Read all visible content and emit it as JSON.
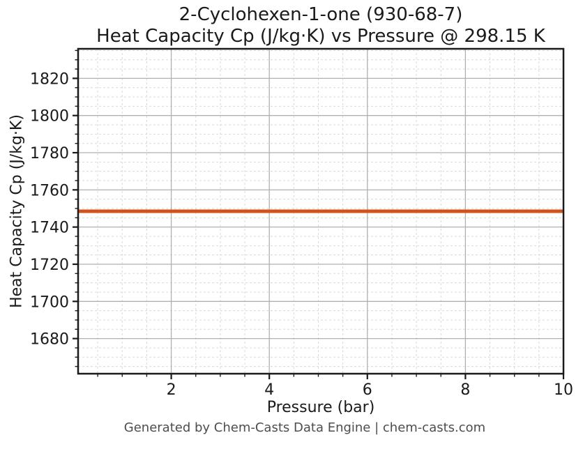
{
  "chart_data": {
    "type": "line",
    "title": "2-Cyclohexen-1-one (930-68-7)",
    "subtitle": "Heat Capacity Cp (J/kg·K) vs Pressure @ 298.15 K",
    "xlabel": "Pressure (bar)",
    "ylabel": "Heat Capacity Cp (J/kg·K)",
    "footer": "Generated by Chem-Casts Data Engine | chem-casts.com",
    "xlim": [
      0.1,
      10
    ],
    "ylim": [
      1661.1,
      1835.9
    ],
    "x_major_ticks": [
      2,
      4,
      6,
      8,
      10
    ],
    "x_minor_step": 0.5,
    "y_major_ticks": [
      1680,
      1700,
      1720,
      1740,
      1760,
      1780,
      1800,
      1820
    ],
    "y_minor_step": 5,
    "grid": true,
    "legend": false,
    "series": [
      {
        "name": "Heat Capacity Cp",
        "color": "#d2521e",
        "line_width": 5,
        "x": [
          0.1,
          10
        ],
        "y": [
          1748.5,
          1748.5
        ],
        "constant_value": 1748.5
      }
    ],
    "colors": {
      "line": "#d2521e",
      "major_grid": "#b0b0b0",
      "minor_grid": "#d9d9d9",
      "spine": "#1a1a1a",
      "text": "#1a1a1a",
      "footer_text": "#4d4d4d",
      "background": "#ffffff"
    }
  }
}
